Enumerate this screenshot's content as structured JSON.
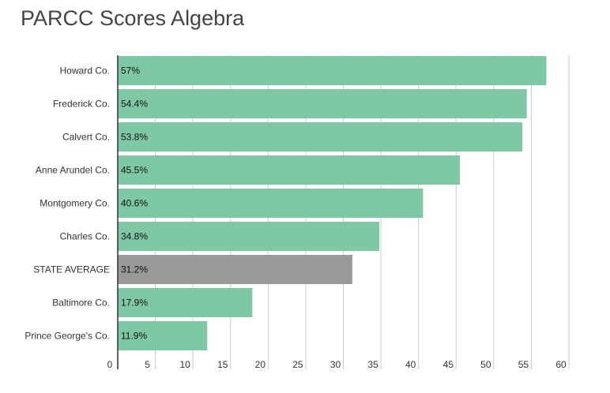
{
  "chart_data": {
    "type": "bar",
    "orientation": "horizontal",
    "title": "PARCC Scores Algebra",
    "categories": [
      "Howard Co.",
      "Frederick Co.",
      "Calvert Co.",
      "Anne Arundel Co.",
      "Montgomery Co.",
      "Charles Co.",
      "STATE AVERAGE",
      "Baltimore Co.",
      "Prince George's Co."
    ],
    "values": [
      57,
      54.4,
      53.8,
      45.5,
      40.6,
      34.8,
      31.2,
      17.9,
      11.9
    ],
    "data_labels": [
      "57%",
      "54.4%",
      "53.8%",
      "45.5%",
      "40.6%",
      "34.8%",
      "31.2%",
      "17.9%",
      "11.9%"
    ],
    "highlight_category": "STATE AVERAGE",
    "xlim": [
      0,
      60
    ],
    "x_ticks": [
      0,
      5,
      10,
      15,
      20,
      25,
      30,
      35,
      40,
      45,
      50,
      55,
      60
    ],
    "grid": true,
    "colors": {
      "bar": "#7ec8a6",
      "highlight": "#999999",
      "grid": "#cccccc",
      "axis": "#333333"
    }
  }
}
